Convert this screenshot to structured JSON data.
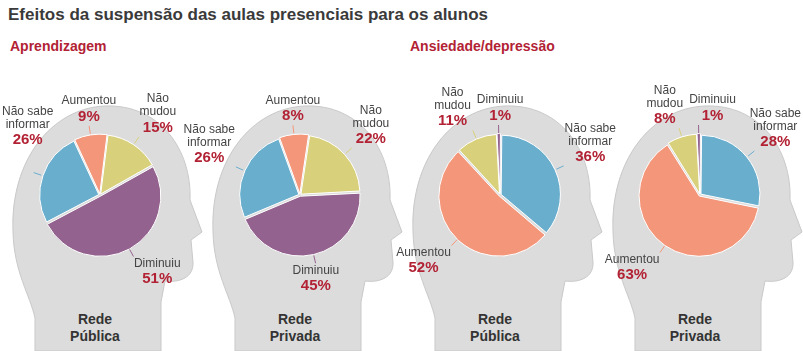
{
  "title": "Efeitos da suspensão das aulas presenciais para os alunos",
  "chart_data": [
    {
      "type": "pie",
      "group": "Aprendizagem",
      "title": "Rede Pública",
      "categories": [
        "Aumentou",
        "Não mudou",
        "Diminuiu",
        "Não sabe informar"
      ],
      "values": [
        9,
        15,
        51,
        26
      ],
      "value_labels": [
        "9%",
        "15%",
        "51%",
        "26%"
      ],
      "colors": [
        "#f4967a",
        "#d8d07b",
        "#94628f",
        "#6aaece"
      ],
      "data_labels": true
    },
    {
      "type": "pie",
      "group": "Aprendizagem",
      "title": "Rede Privada",
      "categories": [
        "Aumentou",
        "Não mudou",
        "Diminuiu",
        "Não sabe informar"
      ],
      "values": [
        8,
        22,
        45,
        26
      ],
      "value_labels": [
        "8%",
        "22%",
        "45%",
        "26%"
      ],
      "colors": [
        "#f4967a",
        "#d8d07b",
        "#94628f",
        "#6aaece"
      ],
      "data_labels": true
    },
    {
      "type": "pie",
      "group": "Ansiedade/depressão",
      "title": "Rede Pública",
      "categories": [
        "Diminuiu",
        "Não sabe informar",
        "Aumentou",
        "Não mudou"
      ],
      "values": [
        1,
        36,
        52,
        11
      ],
      "value_labels": [
        "1%",
        "36%",
        "52%",
        "11%"
      ],
      "colors": [
        "#94628f",
        "#6aaece",
        "#f4967a",
        "#d8d07b"
      ],
      "data_labels": true
    },
    {
      "type": "pie",
      "group": "Ansiedade/depressão",
      "title": "Rede Privada",
      "categories": [
        "Diminuiu",
        "Não sabe informar",
        "Aumentou",
        "Não mudou"
      ],
      "values": [
        1,
        28,
        63,
        8
      ],
      "value_labels": [
        "1%",
        "28%",
        "63%",
        "8%"
      ],
      "colors": [
        "#94628f",
        "#6aaece",
        "#f4967a",
        "#d8d07b"
      ],
      "data_labels": true
    }
  ]
}
